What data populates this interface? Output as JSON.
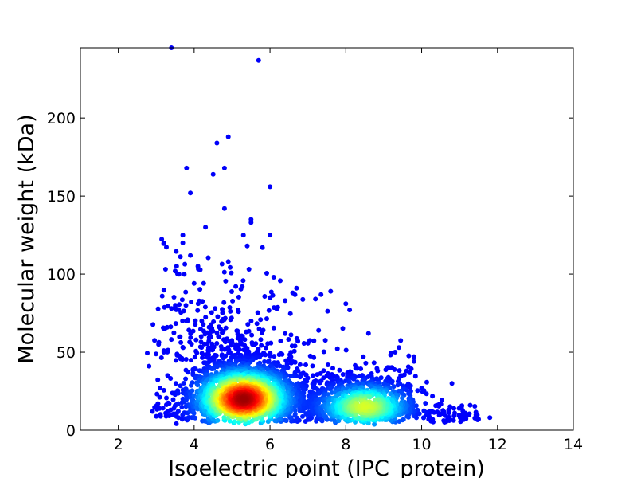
{
  "chart_data": {
    "type": "scatter",
    "xlabel": "Isoelectric point (IPC_protein)",
    "ylabel": "Molecular weight (kDa)",
    "xlim": [
      1,
      14
    ],
    "ylim": [
      0,
      245
    ],
    "x_ticks": [
      2,
      4,
      6,
      8,
      10,
      12,
      14
    ],
    "y_ticks": [
      0,
      50,
      100,
      150,
      200
    ],
    "x_tick_labels": [
      "2",
      "4",
      "6",
      "8",
      "10",
      "12",
      "14"
    ],
    "y_tick_labels": [
      "0",
      "50",
      "100",
      "150",
      "200"
    ],
    "grid": false,
    "legend": "none",
    "color_encoding": "point density (jet colormap: blue = low, red = high)",
    "colormap": [
      "#00007f",
      "#0000ff",
      "#00a0ff",
      "#00ffff",
      "#7fff7f",
      "#ffff00",
      "#ff9000",
      "#ff0000",
      "#7f0000"
    ],
    "density_peaks": [
      {
        "x": 5.3,
        "y": 20,
        "level": "highest"
      },
      {
        "x": 8.5,
        "y": 15,
        "level": "secondary"
      }
    ],
    "outliers": [
      {
        "x": 3.4,
        "y": 245
      },
      {
        "x": 5.7,
        "y": 237
      },
      {
        "x": 4.9,
        "y": 188
      },
      {
        "x": 4.6,
        "y": 184
      },
      {
        "x": 3.8,
        "y": 168
      },
      {
        "x": 4.8,
        "y": 168
      },
      {
        "x": 4.5,
        "y": 164
      },
      {
        "x": 6.0,
        "y": 156
      },
      {
        "x": 3.9,
        "y": 152
      },
      {
        "x": 4.8,
        "y": 142
      },
      {
        "x": 5.5,
        "y": 135
      },
      {
        "x": 5.5,
        "y": 133
      },
      {
        "x": 4.3,
        "y": 130
      },
      {
        "x": 5.3,
        "y": 125
      },
      {
        "x": 6.0,
        "y": 125
      },
      {
        "x": 3.7,
        "y": 125
      },
      {
        "x": 3.2,
        "y": 120
      },
      {
        "x": 3.7,
        "y": 120
      },
      {
        "x": 5.4,
        "y": 118
      },
      {
        "x": 5.8,
        "y": 117
      },
      {
        "x": 3.9,
        "y": 112
      },
      {
        "x": 4.1,
        "y": 105
      },
      {
        "x": 3.5,
        "y": 102
      },
      {
        "x": 4.9,
        "y": 108
      },
      {
        "x": 6.1,
        "y": 98
      },
      {
        "x": 6.7,
        "y": 91
      },
      {
        "x": 7.6,
        "y": 89
      },
      {
        "x": 7.2,
        "y": 84
      },
      {
        "x": 8.0,
        "y": 81
      },
      {
        "x": 8.1,
        "y": 77
      },
      {
        "x": 6.4,
        "y": 83
      },
      {
        "x": 6.6,
        "y": 88
      },
      {
        "x": 10.8,
        "y": 30
      },
      {
        "x": 11.8,
        "y": 8
      },
      {
        "x": 11.5,
        "y": 7
      },
      {
        "x": 2.9,
        "y": 12
      },
      {
        "x": 3.2,
        "y": 50
      },
      {
        "x": 3.2,
        "y": 51
      },
      {
        "x": 3.3,
        "y": 35
      },
      {
        "x": 3.1,
        "y": 27
      },
      {
        "x": 3.5,
        "y": 78
      },
      {
        "x": 4.0,
        "y": 94
      },
      {
        "x": 3.8,
        "y": 70
      },
      {
        "x": 4.2,
        "y": 70
      },
      {
        "x": 9.3,
        "y": 50
      },
      {
        "x": 9.4,
        "y": 53
      },
      {
        "x": 9.6,
        "y": 38
      },
      {
        "x": 10.0,
        "y": 27
      }
    ]
  }
}
